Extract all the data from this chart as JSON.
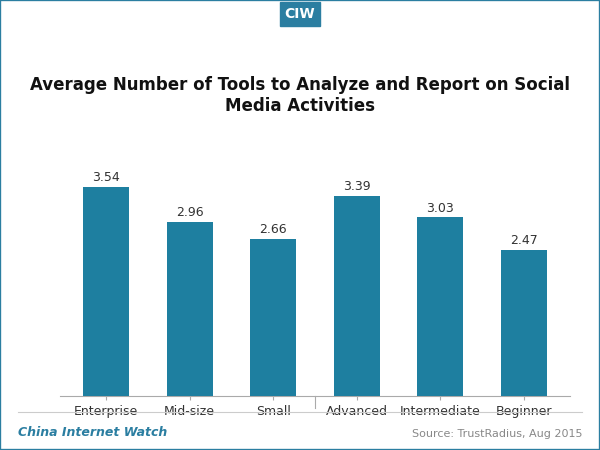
{
  "title": "Average Number of Tools to Analyze and Report on Social\nMedia Activities",
  "categories": [
    "Enterprise",
    "Mid-size",
    "Small",
    "Advanced",
    "Intermediate",
    "Beginner"
  ],
  "values": [
    3.54,
    2.96,
    2.66,
    3.39,
    3.03,
    2.47
  ],
  "bar_color": "#1e7fa0",
  "bar_width": 0.55,
  "ylim": [
    0,
    4.2
  ],
  "title_fontsize": 12,
  "label_fontsize": 9,
  "value_fontsize": 9,
  "footer_left": "China Internet Watch",
  "footer_right": "Source: TrustRadius, Aug 2015",
  "header_label": "CIW",
  "header_bg": "#2b7ea1",
  "header_text_color": "#ffffff",
  "footer_left_color": "#2b7ea1",
  "footer_right_color": "#888888",
  "background_color": "#ffffff",
  "border_color": "#2b7ea1"
}
